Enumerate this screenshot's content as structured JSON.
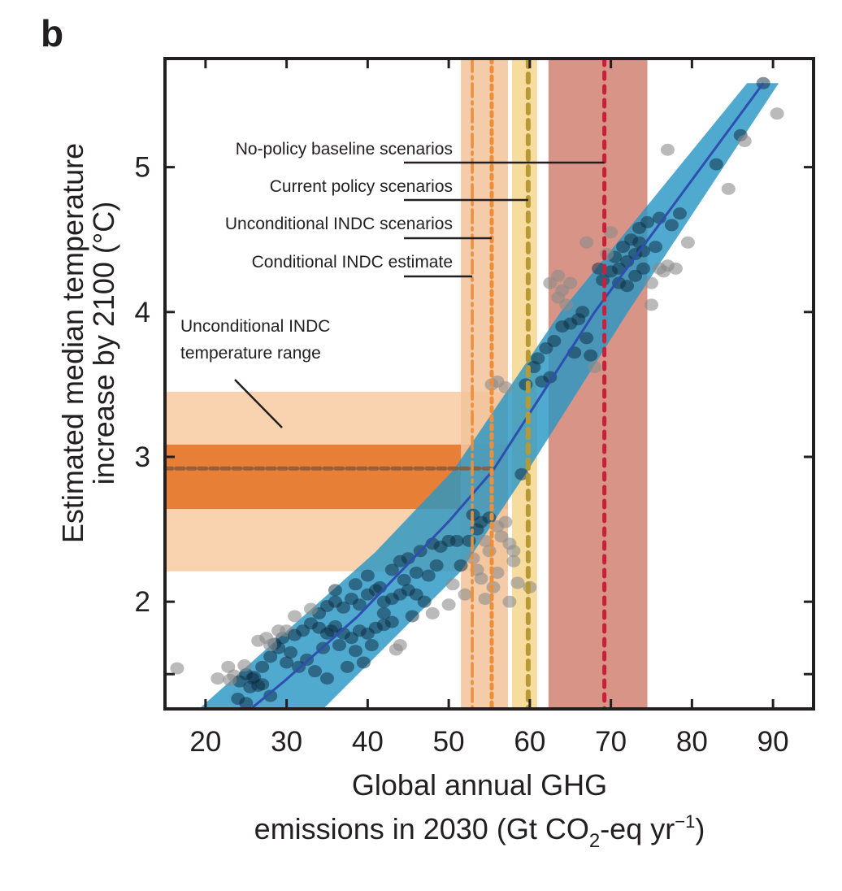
{
  "panel_label": "b",
  "chart_data": {
    "type": "scatter",
    "title": "",
    "xlabel_lines": [
      "Global annual GHG",
      "emissions in 2030 (Gt CO",
      "2",
      "-eq yr",
      "−1",
      ")"
    ],
    "xlabel": "Global annual GHG emissions in 2030 (Gt CO2-eq yr−1)",
    "ylabel_lines": [
      "Estimated median temperature",
      "increase by 2100 (°C)"
    ],
    "xlim": [
      15,
      95
    ],
    "ylim": [
      1.26,
      5.75
    ],
    "xticks": [
      20,
      30,
      40,
      50,
      60,
      70,
      80,
      90
    ],
    "xtick_labels": [
      "20",
      "30",
      "40",
      "50",
      "60",
      "70",
      "80",
      "90"
    ],
    "yticks": [
      1.5,
      2,
      3,
      4,
      5
    ],
    "ytick_labels": [
      "",
      "2",
      "3",
      "4",
      "5"
    ],
    "grid": false,
    "colors": {
      "axis": "#231f20",
      "uncertainty_band": "#2a96c3",
      "median_line": "#2f4fb0",
      "point_inside": "#0a2a3f",
      "point_outside": "#8c8c8c",
      "temp_range_light": "#f9d3b0",
      "temp_range_dark": "#e87f36",
      "temp_range_median_line": "#8a5a3a",
      "indc_band": "#f3c39b",
      "current_policy_band": "#f7dca0",
      "baseline_band": "#d89486",
      "conditional_line": "#ec8f3a",
      "unconditional_line": "#ec8f3a",
      "current_policy_line": "#b89a35",
      "baseline_line": "#c8203a"
    },
    "uncertainty_band": {
      "name": "Temperature uncertainty range",
      "lower_edge": [
        [
          19.4,
          1.27
        ],
        [
          40.9,
          2.34
        ],
        [
          50.6,
          2.91
        ],
        [
          63.8,
          4.0
        ],
        [
          86.8,
          5.58
        ]
      ],
      "upper_edge": [
        [
          34.7,
          1.27
        ],
        [
          51.5,
          2.21
        ],
        [
          59.8,
          2.91
        ],
        [
          72.1,
          4.0
        ],
        [
          90.7,
          5.58
        ]
      ]
    },
    "median_line": [
      [
        25.8,
        1.27
      ],
      [
        29.7,
        1.45
      ],
      [
        38.8,
        1.9
      ],
      [
        50.1,
        2.56
      ],
      [
        55.5,
        2.91
      ],
      [
        68.0,
        4.0
      ],
      [
        88.8,
        5.58
      ]
    ],
    "vertical_bands": [
      {
        "name": "INDC emissions range",
        "x_range": [
          51.5,
          57.3
        ]
      },
      {
        "name": "Current policy range",
        "x_range": [
          57.8,
          60.9
        ]
      },
      {
        "name": "No-policy baseline range",
        "x_range": [
          62.3,
          74.5
        ]
      }
    ],
    "vertical_lines": [
      {
        "name": "No-policy baseline scenarios",
        "x": 69.2,
        "style": "dashed",
        "label_y": 5.0
      },
      {
        "name": "Current policy scenarios",
        "x": 59.8,
        "style": "dashed",
        "label_y": 4.74
      },
      {
        "name": "Unconditional INDC scenarios",
        "x": 55.3,
        "style": "dotted",
        "label_y": 4.47
      },
      {
        "name": "Conditional INDC estimate",
        "x": 52.9,
        "style": "dash-dot",
        "label_y": 4.21
      }
    ],
    "horizontal_bands": [
      {
        "name": "Unconditional INDC temperature range (outer)",
        "y_range": [
          2.21,
          3.45
        ],
        "x_end": 57.3
      },
      {
        "name": "Unconditional INDC temperature range (inner)",
        "y_range": [
          2.64,
          3.085
        ],
        "x_end": 57.3
      }
    ],
    "horizontal_line": {
      "name": "Unconditional INDC median temperature",
      "y": 2.92,
      "x_end": 55.3
    },
    "annotations": [
      {
        "id": "baseline",
        "text": "No-policy baseline scenarios"
      },
      {
        "id": "current",
        "text": "Current policy scenarios"
      },
      {
        "id": "unconditional",
        "text": "Unconditional INDC scenarios"
      },
      {
        "id": "conditional",
        "text": "Conditional INDC estimate"
      },
      {
        "id": "temp_range",
        "lines": [
          "Unconditional INDC",
          "temperature range"
        ]
      }
    ],
    "points": [
      [
        16.5,
        1.54
      ],
      [
        21.5,
        1.47
      ],
      [
        22.8,
        1.55
      ],
      [
        23.5,
        1.49
      ],
      [
        24.2,
        1.45
      ],
      [
        25.0,
        1.5
      ],
      [
        25.8,
        1.47
      ],
      [
        26.5,
        1.42
      ],
      [
        24.8,
        1.56
      ],
      [
        23.0,
        1.46
      ],
      [
        25.5,
        1.41
      ],
      [
        24.0,
        1.33
      ],
      [
        25.0,
        1.3
      ],
      [
        28.0,
        1.35
      ],
      [
        27.0,
        1.43
      ],
      [
        26.0,
        1.48
      ],
      [
        28.5,
        1.71
      ],
      [
        29.5,
        1.75
      ],
      [
        30.0,
        1.8
      ],
      [
        31.0,
        1.77
      ],
      [
        32.0,
        1.8
      ],
      [
        33.0,
        1.85
      ],
      [
        34.0,
        1.82
      ],
      [
        35.0,
        1.78
      ],
      [
        35.5,
        1.8
      ],
      [
        36.0,
        1.83
      ],
      [
        37.0,
        1.78
      ],
      [
        38.0,
        1.75
      ],
      [
        39.0,
        1.8
      ],
      [
        40.0,
        1.78
      ],
      [
        41.0,
        1.82
      ],
      [
        42.0,
        1.84
      ],
      [
        43.0,
        1.86
      ],
      [
        30.5,
        1.65
      ],
      [
        32.5,
        1.6
      ],
      [
        34.5,
        1.68
      ],
      [
        36.5,
        1.7
      ],
      [
        38.5,
        1.66
      ],
      [
        40.5,
        1.7
      ],
      [
        33.5,
        1.52
      ],
      [
        35.0,
        1.47
      ],
      [
        37.5,
        1.55
      ],
      [
        39.5,
        1.58
      ],
      [
        31.5,
        1.55
      ],
      [
        29.0,
        1.68
      ],
      [
        34.0,
        1.92
      ],
      [
        35.0,
        1.97
      ],
      [
        36.0,
        2.0
      ],
      [
        37.0,
        1.96
      ],
      [
        38.0,
        2.02
      ],
      [
        39.0,
        1.98
      ],
      [
        40.0,
        2.05
      ],
      [
        41.0,
        2.08
      ],
      [
        42.0,
        2.0
      ],
      [
        43.0,
        2.02
      ],
      [
        44.0,
        2.05
      ],
      [
        45.0,
        2.08
      ],
      [
        46.0,
        2.05
      ],
      [
        47.0,
        2.0
      ],
      [
        38.5,
        2.12
      ],
      [
        40.0,
        2.18
      ],
      [
        41.5,
        2.1
      ],
      [
        43.0,
        2.22
      ],
      [
        44.5,
        2.15
      ],
      [
        46.0,
        2.2
      ],
      [
        47.5,
        2.18
      ],
      [
        48.5,
        2.25
      ],
      [
        45.0,
        2.3
      ],
      [
        46.5,
        2.35
      ],
      [
        48.0,
        2.4
      ],
      [
        49.0,
        2.38
      ],
      [
        50.0,
        2.42
      ],
      [
        51.0,
        2.42
      ],
      [
        44.0,
        2.28
      ],
      [
        42.0,
        1.92
      ],
      [
        45.5,
        1.9
      ],
      [
        48.0,
        1.92
      ],
      [
        50.0,
        1.98
      ],
      [
        52.0,
        2.05
      ],
      [
        50.5,
        2.12
      ],
      [
        51.5,
        2.25
      ],
      [
        53.0,
        2.3
      ],
      [
        30.0,
        1.58
      ],
      [
        28.0,
        1.62
      ],
      [
        27.0,
        1.55
      ],
      [
        26.5,
        1.73
      ],
      [
        27.5,
        1.75
      ],
      [
        29.0,
        1.8
      ],
      [
        28.0,
        1.7
      ],
      [
        33.0,
        1.95
      ],
      [
        31.0,
        1.9
      ],
      [
        36.0,
        2.08
      ],
      [
        43.5,
        1.67
      ],
      [
        44.0,
        1.7
      ],
      [
        52.5,
        2.42
      ],
      [
        53.5,
        2.5
      ],
      [
        54.0,
        2.55
      ],
      [
        55.0,
        2.58
      ],
      [
        53.0,
        2.6
      ],
      [
        54.5,
        2.42
      ],
      [
        56.0,
        2.52
      ],
      [
        57.0,
        2.55
      ],
      [
        56.5,
        2.45
      ],
      [
        55.0,
        2.35
      ],
      [
        57.5,
        2.4
      ],
      [
        58.0,
        2.28
      ],
      [
        53.5,
        2.22
      ],
      [
        54.0,
        2.16
      ],
      [
        56.0,
        2.2
      ],
      [
        58.5,
        2.13
      ],
      [
        60.0,
        2.1
      ],
      [
        57.5,
        2.0
      ],
      [
        55.5,
        2.1
      ],
      [
        54.5,
        2.02
      ],
      [
        58.0,
        2.35
      ],
      [
        59.0,
        2.88
      ],
      [
        55.3,
        3.5
      ],
      [
        56.0,
        3.52
      ],
      [
        57.0,
        3.48
      ],
      [
        59.5,
        3.5
      ],
      [
        61.5,
        3.52
      ],
      [
        62.5,
        3.55
      ],
      [
        60.5,
        3.62
      ],
      [
        61.0,
        3.68
      ],
      [
        62.0,
        3.75
      ],
      [
        63.0,
        3.8
      ],
      [
        64.0,
        3.9
      ],
      [
        65.0,
        3.92
      ],
      [
        66.0,
        3.95
      ],
      [
        64.5,
        4.05
      ],
      [
        63.5,
        4.1
      ],
      [
        64.0,
        4.15
      ],
      [
        65.0,
        4.2
      ],
      [
        66.5,
        4.0
      ],
      [
        67.0,
        3.82
      ],
      [
        67.5,
        3.7
      ],
      [
        68.0,
        3.62
      ],
      [
        65.5,
        3.72
      ],
      [
        62.5,
        4.2
      ],
      [
        63.5,
        4.25
      ],
      [
        69.0,
        4.22
      ],
      [
        70.0,
        4.28
      ],
      [
        71.0,
        4.3
      ],
      [
        72.0,
        4.35
      ],
      [
        73.0,
        4.4
      ],
      [
        74.0,
        4.42
      ],
      [
        71.5,
        4.45
      ],
      [
        72.5,
        4.5
      ],
      [
        73.5,
        4.48
      ],
      [
        70.5,
        4.38
      ],
      [
        69.5,
        4.4
      ],
      [
        68.5,
        4.3
      ],
      [
        71.0,
        4.2
      ],
      [
        72.0,
        4.18
      ],
      [
        73.0,
        4.25
      ],
      [
        74.0,
        4.3
      ],
      [
        73.5,
        4.58
      ],
      [
        74.5,
        4.62
      ],
      [
        75.0,
        4.2
      ],
      [
        75.5,
        4.45
      ],
      [
        76.0,
        4.3
      ],
      [
        76.5,
        4.28
      ],
      [
        77.0,
        4.32
      ],
      [
        78.0,
        4.3
      ],
      [
        75.0,
        4.05
      ],
      [
        76.0,
        4.65
      ],
      [
        77.5,
        4.6
      ],
      [
        78.5,
        4.68
      ],
      [
        79.5,
        4.48
      ],
      [
        77.0,
        5.12
      ],
      [
        83.0,
        5.02
      ],
      [
        86.0,
        5.22
      ],
      [
        86.5,
        5.18
      ],
      [
        88.8,
        5.58
      ],
      [
        90.5,
        5.37
      ],
      [
        84.5,
        4.85
      ],
      [
        70.0,
        4.55
      ],
      [
        67.0,
        4.48
      ]
    ]
  }
}
